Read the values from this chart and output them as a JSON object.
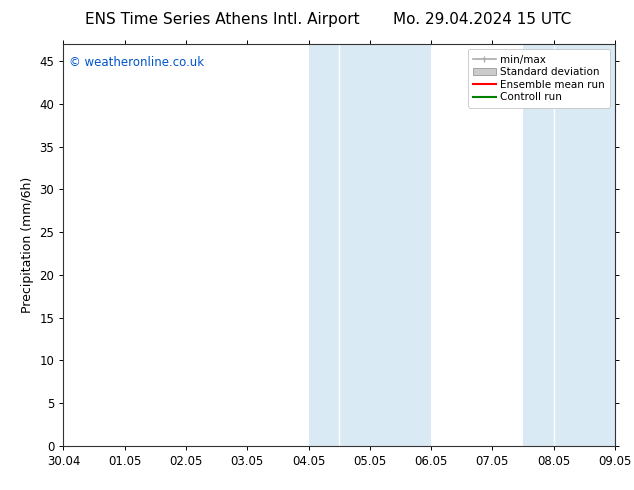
{
  "title_left": "ENS Time Series Athens Intl. Airport",
  "title_right": "Mo. 29.04.2024 15 UTC",
  "ylabel": "Precipitation (mm/6h)",
  "xlabel_ticks": [
    "30.04",
    "01.05",
    "02.05",
    "03.05",
    "04.05",
    "05.05",
    "06.05",
    "07.05",
    "08.05",
    "09.05"
  ],
  "xlim": [
    0,
    9
  ],
  "ylim": [
    0,
    47
  ],
  "yticks": [
    0,
    5,
    10,
    15,
    20,
    25,
    30,
    35,
    40,
    45
  ],
  "shaded_regions": [
    {
      "xmin": 4.0,
      "xmax": 4.5,
      "color": "#daeaf5"
    },
    {
      "xmin": 4.5,
      "xmax": 6.0,
      "color": "#daeaf5"
    },
    {
      "xmin": 7.5,
      "xmax": 8.0,
      "color": "#daeaf5"
    },
    {
      "xmin": 8.0,
      "xmax": 9.0,
      "color": "#daeaf5"
    }
  ],
  "legend_entries": [
    {
      "label": "min/max",
      "color": "#aaaaaa",
      "type": "errorbar"
    },
    {
      "label": "Standard deviation",
      "color": "#cccccc",
      "type": "box"
    },
    {
      "label": "Ensemble mean run",
      "color": "#ff0000",
      "type": "line"
    },
    {
      "label": "Controll run",
      "color": "#008000",
      "type": "line"
    }
  ],
  "watermark": "© weatheronline.co.uk",
  "watermark_color": "#0055cc",
  "background_color": "#ffffff",
  "plot_bg_color": "#ffffff",
  "tick_label_fontsize": 8.5,
  "axis_label_fontsize": 9,
  "title_fontsize": 11
}
